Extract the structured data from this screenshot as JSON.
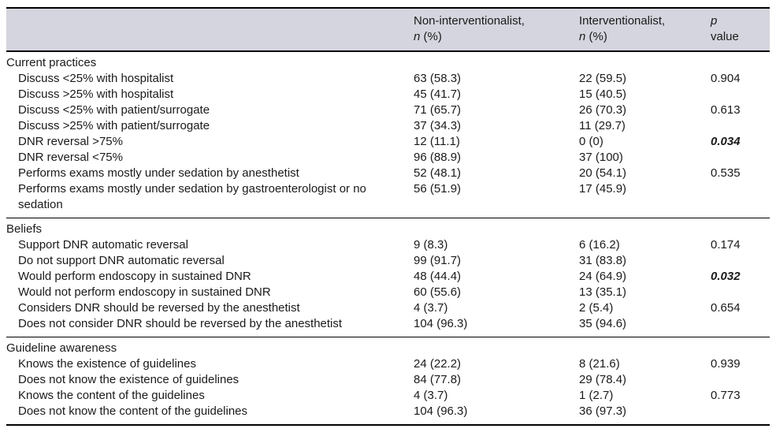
{
  "colors": {
    "header_bg": "#d4d5de",
    "border": "#000000",
    "text": "#1a1a1a"
  },
  "table": {
    "columns": [
      {
        "line1": "Non-interventionalist,",
        "n_label": "n",
        "n_unit": " (%)"
      },
      {
        "line1": "Interventionalist,",
        "n_label": "n",
        "n_unit": " (%)"
      },
      {
        "line1": "p",
        "line2": "value"
      }
    ],
    "sections": [
      {
        "title": "Current practices",
        "rows": [
          {
            "label": "Discuss <25% with hospitalist",
            "non_interventionalist": "63 (58.3)",
            "interventionalist": "22 (59.5)",
            "p_value": "0.904",
            "p_significant": false
          },
          {
            "label": "Discuss >25% with hospitalist",
            "non_interventionalist": "45 (41.7)",
            "interventionalist": "15 (40.5)",
            "p_value": "",
            "p_significant": false
          },
          {
            "label": "Discuss <25% with patient/surrogate",
            "non_interventionalist": "71 (65.7)",
            "interventionalist": "26 (70.3)",
            "p_value": "0.613",
            "p_significant": false
          },
          {
            "label": "Discuss >25% with patient/surrogate",
            "non_interventionalist": "37 (34.3)",
            "interventionalist": "11 (29.7)",
            "p_value": "",
            "p_significant": false
          },
          {
            "label": "DNR reversal >75%",
            "non_interventionalist": "12 (11.1)",
            "interventionalist": "0 (0)",
            "p_value": "0.034",
            "p_significant": true
          },
          {
            "label": "DNR reversal <75%",
            "non_interventionalist": "96 (88.9)",
            "interventionalist": "37 (100)",
            "p_value": "",
            "p_significant": false
          },
          {
            "label": "Performs exams mostly under sedation by anesthetist",
            "non_interventionalist": "52 (48.1)",
            "interventionalist": "20 (54.1)",
            "p_value": "0.535",
            "p_significant": false
          },
          {
            "label": "Performs exams mostly under sedation by gastroenterologist or no sedation",
            "non_interventionalist": "56 (51.9)",
            "interventionalist": "17 (45.9)",
            "p_value": "",
            "p_significant": false
          }
        ]
      },
      {
        "title": "Beliefs",
        "rows": [
          {
            "label": "Support DNR automatic reversal",
            "non_interventionalist": "9 (8.3)",
            "interventionalist": "6 (16.2)",
            "p_value": "0.174",
            "p_significant": false
          },
          {
            "label": "Do not support DNR automatic reversal",
            "non_interventionalist": "99 (91.7)",
            "interventionalist": "31 (83.8)",
            "p_value": "",
            "p_significant": false
          },
          {
            "label": "Would perform endoscopy in sustained DNR",
            "non_interventionalist": "48 (44.4)",
            "interventionalist": "24 (64.9)",
            "p_value": "0.032",
            "p_significant": true
          },
          {
            "label": "Would not perform endoscopy in sustained DNR",
            "non_interventionalist": "60 (55.6)",
            "interventionalist": "13 (35.1)",
            "p_value": "",
            "p_significant": false
          },
          {
            "label": "Considers DNR should be reversed by the anesthetist",
            "non_interventionalist": "4 (3.7)",
            "interventionalist": "2 (5.4)",
            "p_value": "0.654",
            "p_significant": false
          },
          {
            "label": "Does not consider DNR should be reversed by the anesthetist",
            "non_interventionalist": "104 (96.3)",
            "interventionalist": "35 (94.6)",
            "p_value": "",
            "p_significant": false
          }
        ]
      },
      {
        "title": "Guideline awareness",
        "rows": [
          {
            "label": "Knows the existence of guidelines",
            "non_interventionalist": "24 (22.2)",
            "interventionalist": "8 (21.6)",
            "p_value": "0.939",
            "p_significant": false
          },
          {
            "label": "Does not know the existence of guidelines",
            "non_interventionalist": "84 (77.8)",
            "interventionalist": "29 (78.4)",
            "p_value": "",
            "p_significant": false
          },
          {
            "label": "Knows the content of the guidelines",
            "non_interventionalist": "4 (3.7)",
            "interventionalist": "1 (2.7)",
            "p_value": "0.773",
            "p_significant": false
          },
          {
            "label": "Does not know the content of the guidelines",
            "non_interventionalist": "104 (96.3)",
            "interventionalist": "36 (97.3)",
            "p_value": "",
            "p_significant": false
          }
        ]
      }
    ]
  }
}
